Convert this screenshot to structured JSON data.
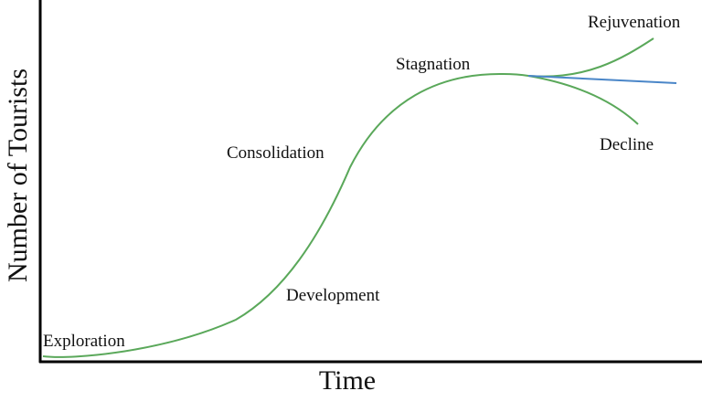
{
  "axes": {
    "y_label": "Number of Tourists",
    "x_label": "Time"
  },
  "stages": [
    {
      "label": "Exploration"
    },
    {
      "label": "Development"
    },
    {
      "label": "Consolidation"
    },
    {
      "label": "Stagnation"
    },
    {
      "label": "Rejuvenation"
    },
    {
      "label": "Decline"
    }
  ]
}
